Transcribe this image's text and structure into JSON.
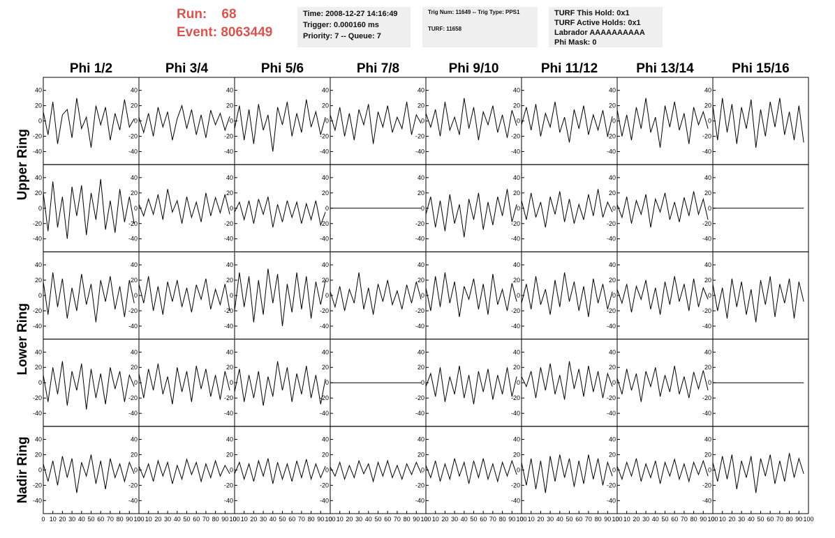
{
  "header": {
    "run_label": "Run:",
    "run": "68",
    "event_label": "Event:",
    "event": "8063449",
    "box1": [
      "Time: 2008-12-27 14:16:49",
      "Trigger: 0.000160 ms",
      "Priority: 7 -- Queue: 7"
    ],
    "box2": [
      "Trig Num: 11649 -- Trig Type: PPS1",
      "TURF: 11658"
    ],
    "box3": [
      "TURF This Hold: 0x1",
      "TURF Active Holds: 0x1",
      "Labrador AAAAAAAAAA",
      "Phi Mask: 0"
    ]
  },
  "waveforms": {
    "type": "line",
    "columns": [
      "Phi 1/2",
      "Phi 3/4",
      "Phi 5/6",
      "Phi 7/8",
      "Phi 9/10",
      "Phi 11/12",
      "Phi 13/14",
      "Phi 15/16"
    ],
    "ring_labels": [
      "Upper Ring",
      "Lower Ring",
      "Nadir Ring"
    ],
    "xlim": [
      0,
      100
    ],
    "ylim": [
      -57,
      57
    ],
    "xticks": [
      0,
      10,
      20,
      30,
      40,
      50,
      60,
      70,
      80,
      90,
      100
    ],
    "yticks": [
      -40,
      -20,
      0,
      20,
      40
    ],
    "x": [
      0,
      5,
      10,
      15,
      20,
      25,
      30,
      35,
      40,
      45,
      50,
      55,
      60,
      65,
      70,
      75,
      80,
      85,
      90,
      95
    ],
    "panels": [
      [
        [
          12,
          -18,
          25,
          -30,
          8,
          15,
          -22,
          30,
          -10,
          5,
          -35,
          20,
          -5,
          18,
          -25,
          10,
          -12,
          28,
          -8,
          3
        ],
        [
          5,
          -15,
          10,
          -20,
          18,
          -8,
          12,
          -25,
          3,
          20,
          -10,
          15,
          -18,
          8,
          -22,
          14,
          -5,
          10,
          -12,
          6
        ],
        [
          -10,
          20,
          -25,
          15,
          -30,
          22,
          -12,
          8,
          -40,
          18,
          -5,
          25,
          -20,
          10,
          -15,
          28,
          -8,
          12,
          -18,
          5
        ],
        [
          8,
          -12,
          18,
          -20,
          10,
          -25,
          15,
          -5,
          22,
          -30,
          12,
          -8,
          20,
          -15,
          5,
          -10,
          25,
          -18,
          8,
          -3
        ],
        [
          10,
          -8,
          15,
          -20,
          25,
          -12,
          5,
          -18,
          30,
          -10,
          18,
          -25,
          12,
          -5,
          20,
          -15,
          8,
          -22,
          14,
          -6
        ],
        [
          -5,
          18,
          -12,
          22,
          -20,
          10,
          -8,
          25,
          -15,
          5,
          -28,
          15,
          -10,
          20,
          -18,
          8,
          -12,
          14,
          -20,
          6
        ],
        [
          15,
          -20,
          8,
          -25,
          18,
          -10,
          30,
          -15,
          5,
          -35,
          20,
          -8,
          25,
          -12,
          10,
          -30,
          18,
          -5,
          12,
          -10
        ],
        [
          20,
          -25,
          30,
          -15,
          22,
          -30,
          18,
          -10,
          28,
          -35,
          15,
          -20,
          25,
          -8,
          30,
          -18,
          12,
          -25,
          20,
          -28
        ]
      ],
      [
        [
          20,
          -30,
          35,
          -25,
          15,
          -40,
          28,
          -10,
          30,
          -35,
          20,
          -15,
          38,
          -28,
          10,
          -32,
          25,
          -18,
          15,
          -20
        ],
        [
          5,
          -10,
          12,
          -8,
          18,
          -15,
          25,
          -5,
          10,
          -20,
          15,
          -12,
          8,
          -18,
          20,
          -10,
          14,
          -6,
          18,
          -8
        ],
        [
          -5,
          8,
          -15,
          10,
          -20,
          12,
          -8,
          15,
          -25,
          5,
          -18,
          10,
          -12,
          8,
          -20,
          6,
          -15,
          10,
          -22,
          -5
        ],
        [
          0,
          0,
          0,
          0,
          0,
          0,
          0,
          0,
          0,
          0,
          0,
          0,
          0,
          0,
          0,
          0,
          0,
          0,
          0,
          0
        ],
        [
          -8,
          15,
          -25,
          10,
          -30,
          18,
          -20,
          5,
          -38,
          12,
          -15,
          20,
          -28,
          8,
          -22,
          15,
          -10,
          25,
          -18,
          5
        ],
        [
          10,
          -15,
          20,
          -12,
          8,
          -25,
          15,
          -8,
          22,
          -18,
          12,
          -20,
          5,
          -15,
          18,
          -10,
          25,
          -12,
          8,
          -5
        ],
        [
          5,
          -12,
          15,
          -20,
          10,
          -8,
          18,
          -25,
          12,
          -5,
          20,
          -15,
          8,
          -18,
          14,
          -10,
          22,
          -8,
          12,
          -15
        ],
        [
          0,
          0,
          0,
          0,
          0,
          0,
          0,
          0,
          0,
          0,
          0,
          0,
          0,
          0,
          0,
          0,
          0,
          0,
          0,
          0
        ]
      ],
      [
        [
          18,
          -25,
          30,
          -15,
          22,
          -30,
          10,
          -20,
          28,
          -12,
          15,
          -35,
          20,
          -8,
          25,
          -18,
          12,
          -28,
          20,
          -10
        ],
        [
          15,
          -10,
          25,
          -20,
          12,
          -25,
          18,
          -8,
          20,
          -15,
          10,
          -22,
          14,
          -5,
          22,
          -18,
          8,
          -12,
          15,
          -20
        ],
        [
          -20,
          30,
          -15,
          25,
          -35,
          20,
          -25,
          35,
          -10,
          28,
          -40,
          15,
          -22,
          30,
          -18,
          25,
          -30,
          18,
          -12,
          20
        ],
        [
          5,
          -15,
          12,
          -20,
          8,
          -10,
          30,
          -18,
          10,
          -25,
          15,
          -8,
          20,
          -12,
          6,
          -18,
          14,
          -10,
          18,
          -5
        ],
        [
          10,
          -20,
          25,
          -15,
          30,
          -10,
          18,
          -28,
          12,
          -5,
          22,
          -18,
          15,
          -25,
          28,
          -12,
          8,
          -20,
          16,
          -8
        ],
        [
          -10,
          15,
          -18,
          25,
          -12,
          8,
          -25,
          20,
          -15,
          30,
          -8,
          18,
          -20,
          12,
          -28,
          22,
          -10,
          15,
          -18,
          5
        ],
        [
          8,
          -10,
          15,
          -22,
          12,
          -5,
          20,
          -18,
          10,
          -25,
          18,
          -12,
          25,
          -8,
          15,
          -20,
          22,
          -15,
          10,
          -5
        ],
        [
          15,
          -20,
          10,
          -30,
          22,
          -15,
          18,
          -25,
          8,
          -35,
          20,
          -12,
          25,
          -28,
          15,
          -10,
          22,
          -30,
          18,
          -8
        ]
      ],
      [
        [
          10,
          -25,
          20,
          -15,
          28,
          -30,
          15,
          -10,
          25,
          -35,
          18,
          -20,
          12,
          -28,
          20,
          -8,
          15,
          -25,
          10,
          -5
        ],
        [
          12,
          -20,
          18,
          -10,
          25,
          -15,
          8,
          -28,
          20,
          -12,
          15,
          -25,
          22,
          -8,
          18,
          -18,
          10,
          -22,
          15,
          -10
        ],
        [
          -12,
          18,
          -25,
          10,
          -20,
          15,
          -30,
          8,
          -18,
          28,
          -10,
          20,
          -25,
          12,
          -15,
          22,
          -20,
          10,
          -28,
          5
        ],
        [
          0,
          0,
          0,
          0,
          0,
          0,
          0,
          0,
          0,
          0,
          0,
          0,
          0,
          0,
          0,
          0,
          0,
          0,
          0,
          0
        ],
        [
          -5,
          12,
          -18,
          20,
          -25,
          8,
          -15,
          22,
          -20,
          10,
          -28,
          15,
          -12,
          18,
          -22,
          10,
          -15,
          20,
          -18,
          8
        ],
        [
          8,
          -5,
          15,
          -20,
          20,
          -10,
          25,
          -15,
          10,
          -22,
          28,
          -8,
          18,
          -18,
          22,
          -12,
          15,
          -20,
          12,
          -5
        ],
        [
          6,
          -15,
          18,
          -10,
          12,
          -25,
          15,
          -5,
          20,
          -18,
          10,
          -12,
          22,
          -15,
          8,
          -20,
          14,
          -8,
          16,
          -10
        ],
        [
          0,
          0,
          0,
          0,
          0,
          0,
          0,
          0,
          0,
          0,
          0,
          0,
          0,
          0,
          0,
          0,
          0,
          0,
          0,
          0
        ]
      ],
      [
        [
          8,
          -15,
          12,
          -20,
          18,
          -10,
          15,
          -30,
          10,
          -8,
          20,
          -18,
          12,
          -25,
          15,
          -10,
          8,
          -15,
          10,
          -5
        ],
        [
          5,
          -10,
          8,
          -15,
          12,
          -8,
          10,
          -18,
          6,
          -12,
          14,
          -6,
          10,
          -15,
          8,
          -10,
          12,
          -8,
          6,
          -5
        ],
        [
          -5,
          10,
          -12,
          8,
          -15,
          12,
          -8,
          15,
          -18,
          10,
          -12,
          8,
          -15,
          12,
          -10,
          14,
          -12,
          8,
          -10,
          5
        ],
        [
          4,
          -8,
          10,
          -12,
          6,
          -10,
          12,
          -5,
          8,
          -15,
          10,
          -8,
          12,
          -10,
          6,
          -12,
          8,
          -6,
          10,
          -4
        ],
        [
          6,
          -10,
          12,
          -15,
          8,
          -12,
          15,
          -8,
          10,
          -18,
          12,
          -10,
          15,
          -12,
          8,
          -15,
          10,
          -8,
          12,
          -6
        ],
        [
          10,
          -20,
          15,
          -25,
          12,
          -30,
          18,
          -15,
          20,
          -10,
          15,
          -22,
          12,
          -18,
          20,
          -12,
          15,
          -20,
          10,
          -8
        ],
        [
          5,
          -12,
          10,
          -8,
          15,
          -15,
          8,
          -10,
          12,
          -18,
          10,
          -8,
          14,
          -12,
          8,
          -15,
          10,
          -6,
          12,
          -8
        ],
        [
          10,
          -15,
          18,
          -12,
          20,
          -25,
          12,
          -10,
          18,
          -30,
          15,
          -8,
          20,
          -18,
          12,
          -15,
          22,
          -10,
          15,
          -5
        ]
      ]
    ]
  }
}
